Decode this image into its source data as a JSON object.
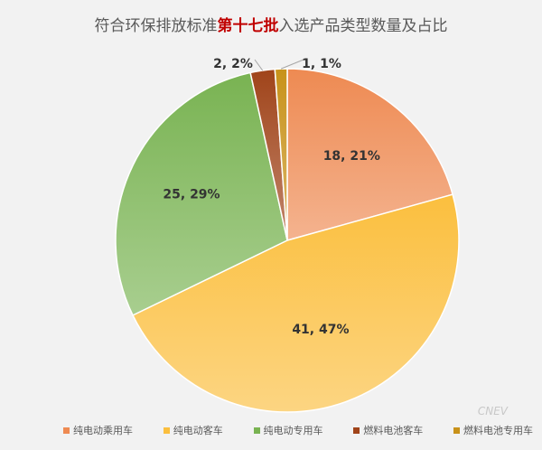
{
  "title": {
    "prefix": "符合环保排放标准",
    "highlight": "第十七批",
    "suffix": "入选产品类型数量及占比"
  },
  "chart_data": {
    "type": "pie",
    "title": "符合环保排放标准第十七批入选产品类型数量及占比",
    "categories": [
      "纯电动乘用车",
      "纯电动客车",
      "纯电动专用车",
      "燃料电池客车",
      "燃料电池专用车"
    ],
    "values": [
      18,
      41,
      25,
      2,
      1
    ],
    "percentages": [
      21,
      47,
      29,
      2,
      1
    ],
    "data_labels": [
      "18, 21%",
      "41, 47%",
      "25, 29%",
      "2, 2%",
      "1, 1%"
    ],
    "colors": [
      "#ee8a52",
      "#fbbf3e",
      "#79b352",
      "#a0441a",
      "#c8921a"
    ],
    "legend_position": "bottom",
    "start_angle_deg": 0,
    "direction": "clockwise"
  },
  "watermark": "CNEV"
}
